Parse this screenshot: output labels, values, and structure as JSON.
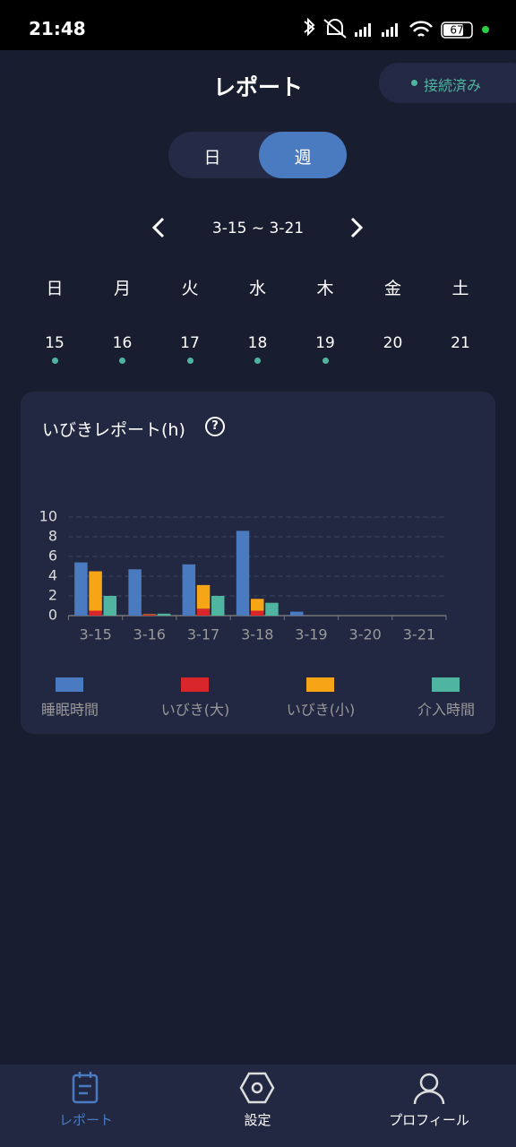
{
  "status_bar": {
    "time": "21:48",
    "battery": "67"
  },
  "header": {
    "title": "レポート",
    "status": "接続済み"
  },
  "toggle": {
    "options": [
      "日",
      "週"
    ],
    "active": 1
  },
  "week": {
    "range": "3-15 ~ 3-21",
    "weekdays": [
      "日",
      "月",
      "火",
      "水",
      "木",
      "金",
      "土"
    ],
    "dates": [
      "15",
      "16",
      "17",
      "18",
      "19",
      "20",
      "21"
    ],
    "dots": [
      true,
      true,
      true,
      true,
      true,
      false,
      false
    ]
  },
  "chart_data": {
    "type": "bar",
    "title": "いびきレポート(h)",
    "categories": [
      "3-15",
      "3-16",
      "3-17",
      "3-18",
      "3-19",
      "3-20",
      "3-21"
    ],
    "series": [
      {
        "name": "睡眠時間",
        "color": "#4a7bc0",
        "values": [
          5.4,
          4.7,
          5.2,
          8.6,
          0.4,
          0,
          0
        ]
      },
      {
        "name": "いびき(大)",
        "color": "#d9262a",
        "stacked": true,
        "values": [
          0.5,
          0.1,
          0.7,
          0.5,
          0,
          0,
          0
        ]
      },
      {
        "name": "いびき(小)",
        "color": "#f5a516",
        "stacked": true,
        "values": [
          4.0,
          0.05,
          2.4,
          1.2,
          0,
          0,
          0
        ]
      },
      {
        "name": "介入時間",
        "color": "#4fb5a0",
        "values": [
          2.0,
          0.2,
          2.0,
          1.3,
          0,
          0,
          0
        ]
      }
    ],
    "ylim": [
      0,
      10
    ],
    "yticks": [
      0,
      2,
      4,
      6,
      8,
      10
    ],
    "grid": true
  },
  "nav": {
    "items": [
      "レポート",
      "設定",
      "プロフィール"
    ],
    "active": 0
  }
}
